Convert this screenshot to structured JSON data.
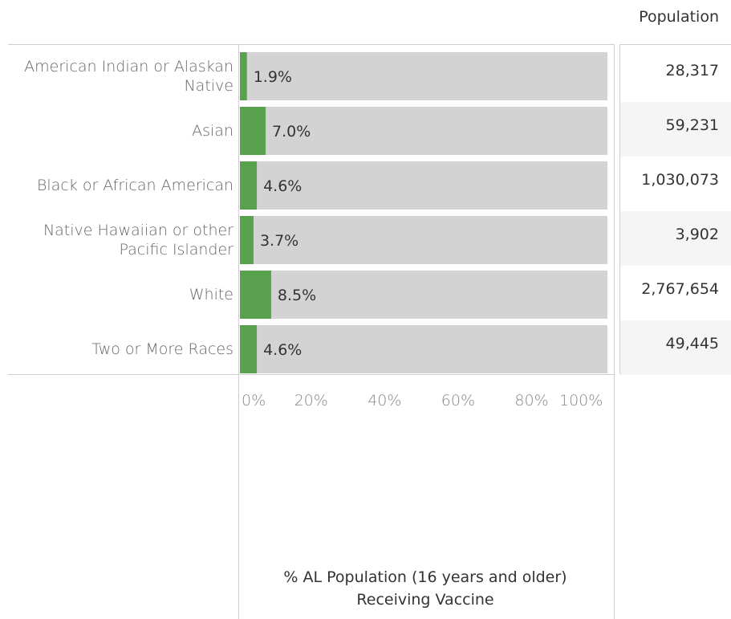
{
  "chart_data": {
    "type": "bar",
    "orientation": "horizontal",
    "categories": [
      "American Indian or Alaskan\nNative",
      "Asian",
      "Black or African American",
      "Native Hawaiian or other\nPacific Islander",
      "White",
      "Two or More Races"
    ],
    "values": [
      1.9,
      7.0,
      4.6,
      3.7,
      8.5,
      4.6
    ],
    "value_labels": [
      "1.9%",
      "7.0%",
      "4.6%",
      "3.7%",
      "8.5%",
      "4.6%"
    ],
    "xlim": [
      0,
      100
    ],
    "x_ticks": [
      "0%",
      "20%",
      "40%",
      "60%",
      "80%",
      "100%"
    ],
    "xlabel": "% AL Population (16 years and older)\nReceiving Vaccine",
    "population_header": "Population",
    "population": [
      "28,317",
      "59,231",
      "1,030,073",
      "3,902",
      "2,767,654",
      "49,445"
    ],
    "colors": {
      "bar": "#59a14f",
      "background_bar": "#d3d3d3",
      "alt_row": "#f5f5f5"
    },
    "grid": false
  }
}
